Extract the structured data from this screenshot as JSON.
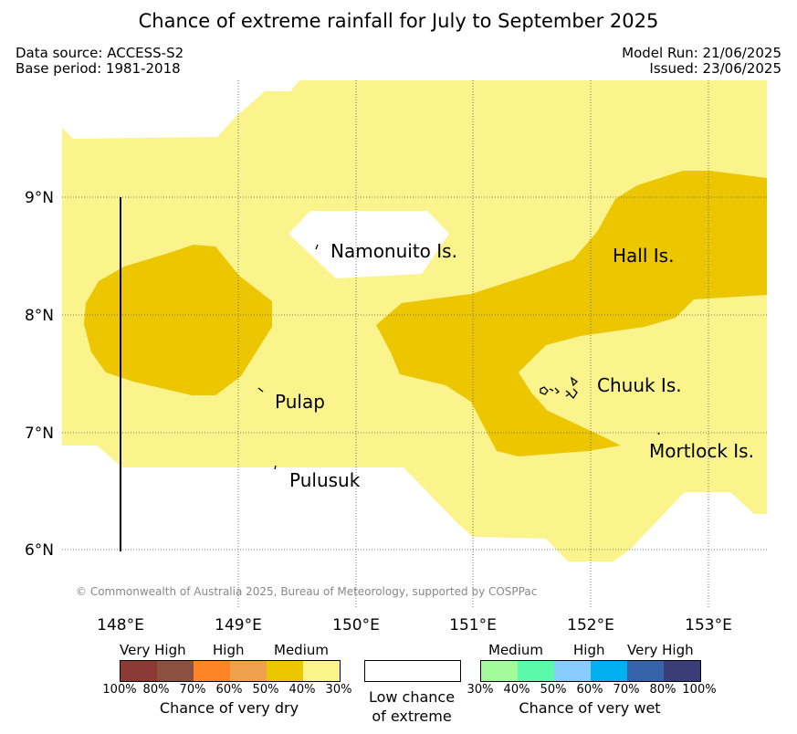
{
  "header": {
    "title": "Chance of extreme rainfall for July to September 2025",
    "data_source": "Data source: ACCESS-S2",
    "base_period": "Base period: 1981-2018",
    "model_run": "Model Run: 21/06/2025",
    "issued": "Issued: 23/06/2025"
  },
  "map": {
    "lon_labels": [
      "148°E",
      "149°E",
      "150°E",
      "151°E",
      "152°E",
      "153°E"
    ],
    "lat_labels": [
      "9°N",
      "8°N",
      "7°N",
      "6°N"
    ],
    "places": {
      "namonuito": "Namonuito Is.",
      "hall": "Hall Is.",
      "pulap": "Pulap",
      "chuuk": "Chuuk Is.",
      "mortlock": "Mortlock Is.",
      "pulusuk": "Pulusuk"
    },
    "copyright": "© Commonwealth of Australia 2025, Bureau of Meteorology, supported by COSPPac",
    "colors": {
      "medium_dry": "#ecc600",
      "low_dry": "#fbf48c",
      "low_chance": "#ffffff"
    }
  },
  "legend": {
    "dry": {
      "group_labels": [
        "Very High",
        "High",
        "Medium"
      ],
      "colors": [
        "#8b3a35",
        "#8b5040",
        "#ff8426",
        "#eea04c",
        "#ecc600",
        "#fbf48c"
      ],
      "ticks": [
        "100%",
        "80%",
        "70%",
        "60%",
        "50%",
        "40%",
        "30%"
      ],
      "caption": "Chance of very dry"
    },
    "low": {
      "color": "#ffffff",
      "caption_line1": "Low chance",
      "caption_line2": "of extreme"
    },
    "wet": {
      "group_labels": [
        "Medium",
        "High",
        "Very High"
      ],
      "colors": [
        "#a2fa9a",
        "#5afaaa",
        "#88ccff",
        "#00b0f0",
        "#3562a8",
        "#3b3d78"
      ],
      "ticks": [
        "30%",
        "40%",
        "50%",
        "60%",
        "70%",
        "80%",
        "100%"
      ],
      "caption": "Chance of very wet"
    }
  }
}
